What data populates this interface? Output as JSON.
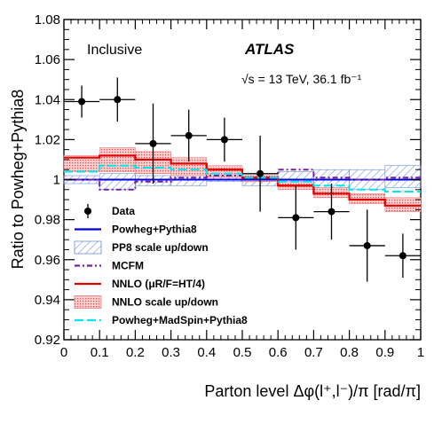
{
  "chart_data": {
    "type": "step",
    "xlabel": "Parton level Δφ(l⁺,l⁻)/π [rad/π]",
    "ylabel": "Ratio to Powheg+Pythia8",
    "xlim": [
      0,
      1
    ],
    "ylim": [
      0.92,
      1.08
    ],
    "x_ticks": [
      "0",
      "0.1",
      "0.2",
      "0.3",
      "0.4",
      "0.5",
      "0.6",
      "0.7",
      "0.8",
      "0.9",
      "1"
    ],
    "y_ticks": [
      "0.92",
      "0.94",
      "0.96",
      "0.98",
      "1",
      "1.02",
      "1.04",
      "1.06",
      "1.08"
    ],
    "annotations": {
      "inclusive": "Inclusive",
      "atlas": "ATLAS",
      "energy": "√s = 13 TeV, 36.1 fb⁻¹"
    },
    "bin_edges": [
      0,
      0.1,
      0.2,
      0.3,
      0.4,
      0.5,
      0.6,
      0.7,
      0.8,
      0.9,
      1.0
    ],
    "series": [
      {
        "name": "Data",
        "style": "points",
        "color": "#000000",
        "x": [
          0.05,
          0.15,
          0.25,
          0.35,
          0.45,
          0.55,
          0.65,
          0.75,
          0.85,
          0.95
        ],
        "values": [
          1.039,
          1.04,
          1.018,
          1.022,
          1.02,
          1.003,
          0.981,
          0.984,
          0.967,
          0.962
        ],
        "err": [
          0.008,
          0.011,
          0.02,
          0.013,
          0.011,
          0.019,
          0.016,
          0.014,
          0.018,
          0.011
        ]
      },
      {
        "name": "Powheg+Pythia8",
        "style": "step",
        "color": "#0000dd",
        "values": [
          1.0,
          1.0,
          1.0,
          1.0,
          1.0,
          1.0,
          1.0,
          1.0,
          1.0,
          1.0
        ]
      },
      {
        "name": "PP8 scale up/down",
        "style": "band",
        "color": "#6b8fe0",
        "lower": [
          0.998,
          0.995,
          0.997,
          0.997,
          0.999,
          0.997,
          0.996,
          0.996,
          0.995,
          0.996
        ],
        "upper": [
          1.002,
          1.003,
          1.002,
          1.002,
          1.002,
          1.002,
          1.004,
          1.005,
          1.005,
          1.007
        ]
      },
      {
        "name": "MCFM",
        "style": "step",
        "color": "#7b1fa2",
        "values": [
          1.0,
          0.995,
          0.999,
          1.001,
          1.002,
          1.001,
          1.005,
          1.001,
          1.0,
          1.001
        ]
      },
      {
        "name": "NNLO (μR/F=HT/4)",
        "style": "step",
        "color": "#e00000",
        "values": [
          1.011,
          1.012,
          1.01,
          1.008,
          1.005,
          1.001,
          0.997,
          0.993,
          0.99,
          0.987
        ]
      },
      {
        "name": "NNLO scale up/down",
        "style": "band",
        "color": "#f08080",
        "lower": [
          1.004,
          1.004,
          1.003,
          1.002,
          1.001,
          0.999,
          0.995,
          0.991,
          0.988,
          0.984
        ],
        "upper": [
          1.012,
          1.016,
          1.014,
          1.011,
          1.007,
          1.003,
          0.999,
          0.996,
          0.993,
          0.991
        ]
      },
      {
        "name": "Powheg+MadSpin+Pythia8",
        "style": "step",
        "color": "#00e5ee",
        "dashed": true,
        "values": [
          1.004,
          1.007,
          1.006,
          1.005,
          1.003,
          1.001,
          0.999,
          0.997,
          0.995,
          0.994
        ]
      }
    ],
    "legend": {
      "placement": "bottom-left",
      "entries": [
        {
          "label": "Data",
          "key": "data"
        },
        {
          "label": "Powheg+Pythia8",
          "key": "line-blue"
        },
        {
          "label": "PP8 scale up/down",
          "key": "band-blue"
        },
        {
          "label": "MCFM",
          "key": "line-purple"
        },
        {
          "label": "NNLO (μR/F=HT/4)",
          "key": "line-red"
        },
        {
          "label": "NNLO scale up/down",
          "key": "band-red"
        },
        {
          "label": "Powheg+MadSpin+Pythia8",
          "key": "line-cyan"
        }
      ]
    }
  }
}
